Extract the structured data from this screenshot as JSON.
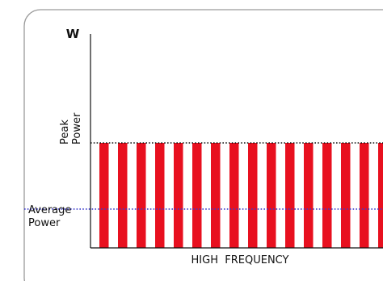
{
  "chart_data": {
    "type": "bar",
    "title": "",
    "y_unit_label": "W",
    "xlabel": "HIGH  FREQUENCY",
    "reference_lines": [
      {
        "name": "Peak Power",
        "label_lines": [
          "Peak",
          "Power"
        ],
        "value": 100,
        "style": "dotted",
        "color": "#111111"
      },
      {
        "name": "Average Power",
        "label_lines": [
          "Average",
          "Power"
        ],
        "value": 37,
        "style": "dotted",
        "color": "#3a3acc"
      }
    ],
    "pulse_value": 100,
    "pulse_count": 16,
    "ylim": [
      0,
      200
    ],
    "grid": false,
    "bar_color": "#e8101f",
    "frame_color": "#9a9a9a",
    "axis_color": "#111111"
  }
}
